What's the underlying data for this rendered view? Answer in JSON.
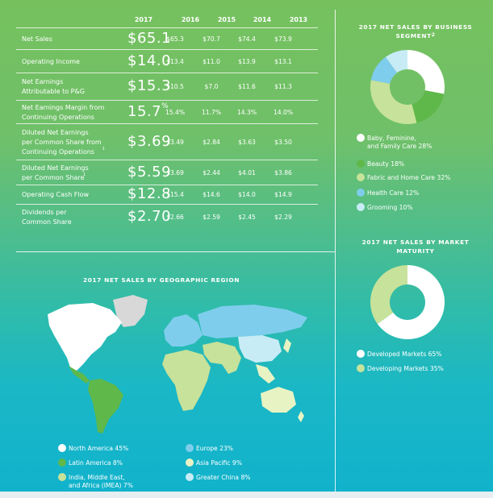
{
  "financials": {
    "years": [
      "2017",
      "2016",
      "2015",
      "2014",
      "2013"
    ],
    "rows": [
      {
        "label": "Net Sales",
        "big": "$65.1",
        "values": [
          "$65.3",
          "$70.7",
          "$74.4",
          "$73.9"
        ]
      },
      {
        "label": "Operating Income",
        "big": "$14.0",
        "values": [
          "$13.4",
          "$11.0",
          "$13.9",
          "$13.1"
        ]
      },
      {
        "label": "Net Earnings\nAttributable to P&G",
        "big": "$15.3",
        "values": [
          "$10.5",
          "$7.0",
          "$11.6",
          "$11.3"
        ]
      },
      {
        "label": "Net Earnings Margin from\nContinuing Operations",
        "big": "15.7",
        "big_suffix": "%",
        "values": [
          "15.4%",
          "11.7%",
          "14.3%",
          "14.0%"
        ]
      },
      {
        "label": "Diluted Net Earnings\nper Common Share from\nContinuing Operations",
        "label_sup": "1",
        "big": "$3.69",
        "values": [
          "$3.49",
          "$2.84",
          "$3.63",
          "$3.50"
        ]
      },
      {
        "label": "Diluted Net Earnings\nper Common Share",
        "label_sup": "1",
        "big": "$5.59",
        "values": [
          "$3.69",
          "$2.44",
          "$4.01",
          "$3.86"
        ]
      },
      {
        "label": "Operating Cash Flow",
        "big": "$12.8",
        "values": [
          "$15.4",
          "$14.6",
          "$14.0",
          "$14.9"
        ]
      },
      {
        "label": "Dividends per\nCommon Share",
        "big": "$2.70",
        "values": [
          "$2.66",
          "$2.59",
          "$2.45",
          "$2.29"
        ]
      }
    ]
  },
  "chart_data": [
    {
      "type": "pie",
      "title": "2017 NET SALES BY BUSINESS SEGMENT",
      "title_sup": "2",
      "categories": [
        "Baby, Feminine, and Family Care",
        "Beauty",
        "Fabric and Home Care",
        "Health Care",
        "Grooming"
      ],
      "values": [
        28,
        18,
        32,
        12,
        10
      ],
      "labels": [
        "Baby, Feminine,\nand Family Care 28%",
        "Beauty 18%",
        "Fabric and Home Care 32%",
        "Health Care 12%",
        "Grooming 10%"
      ],
      "colors": [
        "#ffffff",
        "#5fb84a",
        "#c7e29a",
        "#7fcdec",
        "#c8ecf6"
      ],
      "donut": true,
      "legend_position": "bottom"
    },
    {
      "type": "pie",
      "title": "2017 NET SALES BY MARKET MATURITY",
      "categories": [
        "Developed Markets",
        "Developing Markets"
      ],
      "values": [
        65,
        35
      ],
      "labels": [
        "Developed Markets 65%",
        "Developing Markets 35%"
      ],
      "colors": [
        "#ffffff",
        "#c7e29a"
      ],
      "donut": true,
      "legend_position": "bottom"
    },
    {
      "type": "map",
      "title": "2017 NET SALES BY GEOGRAPHIC REGION",
      "categories": [
        "North America",
        "Latin America",
        "India, Middle East, and Africa (IMEA)",
        "Europe",
        "Asia Pacific",
        "Greater China"
      ],
      "values": [
        45,
        8,
        7,
        23,
        9,
        8
      ],
      "labels": [
        "North America 45%",
        "Latin America 8%",
        "India, Middle East,\nand Africa (IMEA) 7%",
        "Europe 23%",
        "Asia Pacific 9%",
        "Greater China 8%"
      ],
      "colors": [
        "#ffffff",
        "#5fb84a",
        "#c7e29a",
        "#7fcdec",
        "#e8f3c3",
        "#c8ecf6"
      ],
      "greenland_color": "#d8d8d8",
      "legend_position": "bottom"
    }
  ]
}
